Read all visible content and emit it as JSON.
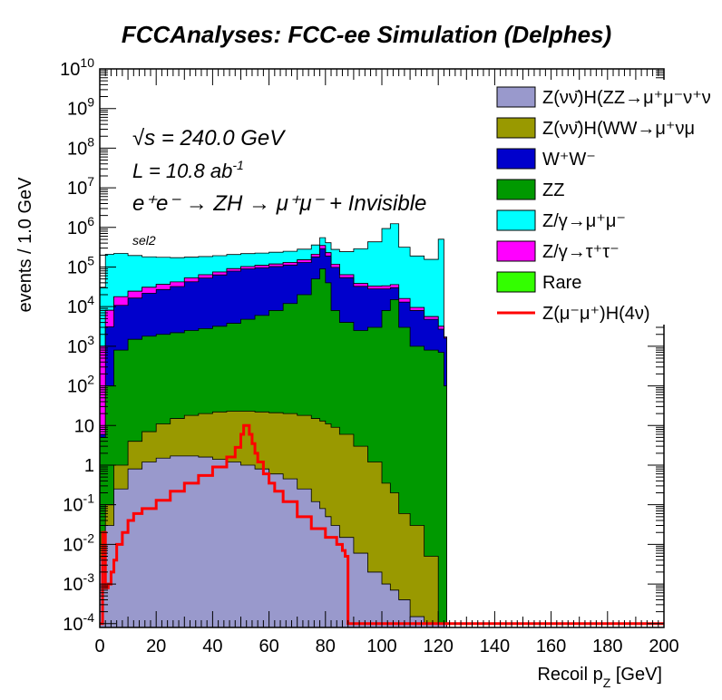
{
  "chart_data": {
    "type": "area",
    "stacked": true,
    "title": "FCCAnalyses: FCC-ee Simulation (Delphes)",
    "xlabel_main": "Recoil p",
    "xlabel_sub": "Z",
    "xlabel_unit": " [GeV]",
    "ylabel": "events / 1.0 GeV",
    "log_y": true,
    "xlim": [
      0,
      200
    ],
    "ylim": [
      8e-05,
      10000000000
    ],
    "x_ticks": [
      0,
      20,
      40,
      60,
      80,
      100,
      120,
      140,
      160,
      180,
      200
    ],
    "y_ticks": [
      {
        "value": 0.0001,
        "base": "10",
        "exp": "-4"
      },
      {
        "value": 0.001,
        "base": "10",
        "exp": "-3"
      },
      {
        "value": 0.01,
        "base": "10",
        "exp": "-2"
      },
      {
        "value": 0.1,
        "base": "10",
        "exp": "-1"
      },
      {
        "value": 1,
        "base": "1",
        "exp": ""
      },
      {
        "value": 10,
        "base": "10",
        "exp": ""
      },
      {
        "value": 100,
        "base": "10",
        "exp": "2"
      },
      {
        "value": 1000,
        "base": "10",
        "exp": "3"
      },
      {
        "value": 10000,
        "base": "10",
        "exp": "4"
      },
      {
        "value": 100000,
        "base": "10",
        "exp": "5"
      },
      {
        "value": 1000000,
        "base": "10",
        "exp": "6"
      },
      {
        "value": 10000000,
        "base": "10",
        "exp": "7"
      },
      {
        "value": 100000000,
        "base": "10",
        "exp": "8"
      },
      {
        "value": 1000000000,
        "base": "10",
        "exp": "9"
      },
      {
        "value": 10000000000,
        "base": "10",
        "exp": "10"
      }
    ],
    "annotations": {
      "sqrt_s": "s = 240.0 GeV",
      "sqrt_symbol": "√",
      "lumi_main": "L = 10.8 ab",
      "lumi_exp": "-1",
      "process": "e⁺e⁻ → ZH → μ⁺μ⁻ + Invisible",
      "selection": "sel2"
    },
    "x": [
      0,
      2,
      5,
      10,
      15,
      20,
      25,
      30,
      35,
      40,
      45,
      50,
      55,
      60,
      65,
      70,
      75,
      78,
      80,
      82,
      85,
      90,
      95,
      100,
      103,
      106,
      110,
      115,
      120,
      122
    ],
    "stack_totals": [
      {
        "name": "Z(νν̄)H(ZZ→μ⁺μ⁻ν⁺ν⁻)",
        "color": "#9999cc",
        "values": [
          0.005,
          0.03,
          0.25,
          0.8,
          1.2,
          1.5,
          1.7,
          1.7,
          1.6,
          1.4,
          1.2,
          1.0,
          0.8,
          0.6,
          0.45,
          0.25,
          0.12,
          0.08,
          0.05,
          0.03,
          0.015,
          0.006,
          0.002,
          0.001,
          0.0007,
          0.0004,
          0.0002,
          0.0001,
          0.0001,
          0.0001
        ]
      },
      {
        "name": "Z(νν̄)H(WW→μ⁺νμ⁻ν̄)",
        "color": "#999900",
        "values": [
          0.01,
          0.08,
          0.8,
          3,
          6,
          10,
          14,
          17,
          19,
          21,
          22,
          22,
          22,
          21,
          20,
          18,
          15,
          13,
          11,
          9,
          6,
          3,
          1,
          0.3,
          0.15,
          0.05,
          0.02,
          0.004,
          0.0001,
          0.0001
        ]
      },
      {
        "name": "W⁺W⁻",
        "color": "#0000cc",
        "values": [
          1000,
          3000,
          10000,
          15000,
          20000,
          25000,
          30000,
          40000,
          50000,
          60000,
          75000,
          85000,
          90000,
          95000,
          100000,
          110000,
          130000,
          200000,
          150000,
          90000,
          50000,
          30000,
          25000,
          20000,
          15000,
          10000,
          7000,
          4000,
          2000,
          1500
        ]
      },
      {
        "name": "ZZ",
        "color": "#009900",
        "values": [
          5,
          100,
          800,
          1500,
          1800,
          2000,
          2200,
          2500,
          2800,
          3200,
          3800,
          4800,
          6000,
          8000,
          12000,
          20000,
          50000,
          90000,
          40000,
          8000,
          4000,
          2500,
          3000,
          8000,
          15000,
          3000,
          1000,
          800,
          700,
          100
        ]
      },
      {
        "name": "Z/γ→μ⁺μ⁻",
        "color": "#00ffff",
        "values": [
          30000,
          200000,
          200000,
          170000,
          150000,
          140000,
          130000,
          125000,
          120000,
          118000,
          116000,
          115000,
          115000,
          117000,
          120000,
          130000,
          150000,
          200000,
          180000,
          160000,
          180000,
          250000,
          400000,
          900000,
          1200000,
          300000,
          180000,
          150000,
          500000,
          0
        ]
      },
      {
        "name": "Z/γ→τ⁺τ⁻",
        "color": "#ff00ff",
        "values": [
          1000,
          5000,
          7000,
          8000,
          9000,
          9500,
          10000,
          10500,
          11000,
          11500,
          12000,
          13000,
          14000,
          16000,
          18000,
          22000,
          30000,
          60000,
          40000,
          20000,
          10000,
          6000,
          5000,
          5500,
          6000,
          3000,
          1500,
          800,
          500,
          100
        ]
      },
      {
        "name": "Rare",
        "color": "#33ff00",
        "values": [
          0,
          0,
          0,
          0,
          0,
          0,
          0,
          0,
          0,
          0,
          0,
          0,
          0,
          0,
          0,
          0,
          0,
          0,
          0,
          0,
          0,
          0,
          0,
          0,
          0,
          0,
          0,
          0,
          0,
          0
        ]
      }
    ],
    "cumulative_tops": [
      {
        "name": "Z(νν̄)H(ZZ→μ⁺μ⁻ν⁺ν⁻)",
        "values": [
          0.0045,
          0.03,
          0.25,
          0.8,
          1.2,
          1.5,
          1.7,
          1.7,
          1.6,
          1.4,
          1.2,
          1.0,
          0.8,
          0.6,
          0.45,
          0.25,
          0.12,
          0.08,
          0.05,
          0.03,
          0.015,
          0.006,
          0.002,
          0.001,
          0.0007,
          0.0004,
          0.00015,
          0.0001,
          0.0001,
          0.0001
        ]
      },
      {
        "name": "Z(νν̄)H(WW→μ⁺νμ⁻ν̄)",
        "values": [
          0.01,
          0.1,
          1.0,
          4,
          7,
          11,
          15,
          18,
          20,
          22,
          23,
          23,
          22,
          21,
          20,
          18,
          15,
          13,
          11,
          9,
          6,
          3,
          1.2,
          0.35,
          0.2,
          0.06,
          0.03,
          0.005,
          0.0001,
          0.0001
        ]
      },
      {
        "name": "ZZ",
        "values": [
          5,
          100,
          800,
          1500,
          1800,
          2000,
          2200,
          2500,
          2800,
          3200,
          3800,
          4800,
          6000,
          8000,
          12000,
          20000,
          50000,
          90000,
          40000,
          8000,
          4000,
          2500,
          3000,
          8000,
          15000,
          3000,
          1000,
          800,
          700,
          100
        ]
      },
      {
        "name": "W⁺W⁻",
        "values": [
          6,
          3100,
          10800,
          16500,
          21800,
          27000,
          32200,
          42500,
          52800,
          63200,
          78800,
          89800,
          96000,
          103000,
          112000,
          130000,
          180000,
          290000,
          190000,
          98000,
          54000,
          32500,
          28000,
          28000,
          30000,
          13000,
          8000,
          4800,
          2700,
          1600
        ]
      },
      {
        "name": "Z/γ→τ⁺τ⁻",
        "values": [
          1006,
          8100,
          17800,
          24500,
          30800,
          36500,
          42200,
          53000,
          63800,
          74700,
          90800,
          102800,
          110000,
          119000,
          130000,
          152000,
          210000,
          350000,
          230000,
          118000,
          64000,
          38500,
          33000,
          33500,
          36000,
          16000,
          9500,
          5600,
          3200,
          1700
        ]
      },
      {
        "name": "Rare",
        "values": [
          1006,
          8100,
          17800,
          24500,
          30800,
          36500,
          42200,
          53000,
          63800,
          74700,
          90800,
          102800,
          110000,
          119000,
          130000,
          152000,
          210000,
          350000,
          230000,
          118000,
          64000,
          38500,
          33000,
          33500,
          36000,
          16000,
          9500,
          5600,
          3200,
          1700
        ]
      },
      {
        "name": "Z/γ→μ⁺μ⁻",
        "values": [
          31000,
          210000,
          220000,
          195000,
          181000,
          176000,
          172000,
          178000,
          184000,
          193000,
          207000,
          218000,
          225000,
          236000,
          250000,
          282000,
          360000,
          550000,
          410000,
          278000,
          244000,
          289000,
          433000,
          934000,
          1236000,
          316000,
          190000,
          156000,
          503000,
          1700
        ]
      }
    ],
    "signal": {
      "name": "Z(μ⁻μ⁺)H(4ν)",
      "color": "#ff0000",
      "x": [
        0,
        1,
        2,
        3,
        4,
        5,
        6,
        8,
        10,
        12,
        15,
        20,
        25,
        30,
        35,
        40,
        45,
        48,
        50,
        51,
        52,
        53,
        54,
        55,
        56,
        58,
        60,
        62,
        65,
        70,
        75,
        80,
        84,
        86,
        87,
        88,
        89,
        200
      ],
      "values": [
        0.0001,
        0.02,
        0.0008,
        0.001,
        0.002,
        0.004,
        0.01,
        0.02,
        0.04,
        0.06,
        0.08,
        0.13,
        0.22,
        0.35,
        0.55,
        0.9,
        1.6,
        2.8,
        6,
        10,
        10,
        6,
        3.5,
        2,
        1.2,
        0.6,
        0.35,
        0.22,
        0.12,
        0.05,
        0.025,
        0.015,
        0.01,
        0.007,
        0.005,
        0.0001,
        0.0001,
        0.0001
      ]
    },
    "legend": [
      {
        "label": "Z(νν̄)H(ZZ→μ⁺μ⁻ν⁺ν",
        "color": "#9999cc",
        "kind": "box"
      },
      {
        "label": "Z(νν̄)H(WW→μ⁺νμ",
        "color": "#999900",
        "kind": "box"
      },
      {
        "label": "W⁺W⁻",
        "color": "#0000cc",
        "kind": "box"
      },
      {
        "label": "ZZ",
        "color": "#009900",
        "kind": "box"
      },
      {
        "label": "Z/γ→μ⁺μ⁻",
        "color": "#00ffff",
        "kind": "box"
      },
      {
        "label": "Z/γ→τ⁺τ⁻",
        "color": "#ff00ff",
        "kind": "box"
      },
      {
        "label": "Rare",
        "color": "#33ff00",
        "kind": "box"
      },
      {
        "label": "Z(μ⁻μ⁺)H(4ν)",
        "color": "#ff0000",
        "kind": "line"
      }
    ],
    "legend_position": "top-right",
    "grid": false
  }
}
